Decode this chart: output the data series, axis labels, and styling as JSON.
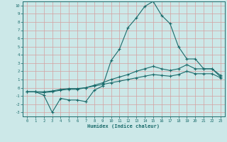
{
  "xlabel": "Humidex (Indice chaleur)",
  "bg_color": "#cce8e8",
  "grid_color": "#d4a0a0",
  "line_color": "#1a6b6b",
  "xlim": [
    -0.5,
    23.5
  ],
  "ylim": [
    -3.5,
    10.5
  ],
  "xticks": [
    0,
    1,
    2,
    3,
    4,
    5,
    6,
    7,
    8,
    9,
    10,
    11,
    12,
    13,
    14,
    15,
    16,
    17,
    18,
    19,
    20,
    21,
    22,
    23
  ],
  "yticks": [
    -3,
    -2,
    -1,
    0,
    1,
    2,
    3,
    4,
    5,
    6,
    7,
    8,
    9,
    10
  ],
  "line_max": {
    "x": [
      0,
      1,
      2,
      3,
      4,
      5,
      6,
      7,
      8,
      9,
      10,
      11,
      12,
      13,
      14,
      15,
      16,
      17,
      18,
      19,
      20,
      21,
      22,
      23
    ],
    "y": [
      -0.5,
      -0.5,
      -0.9,
      -3.0,
      -1.3,
      -1.5,
      -1.5,
      -1.7,
      -0.3,
      0.2,
      3.3,
      4.7,
      7.3,
      8.5,
      9.9,
      10.5,
      8.8,
      7.8,
      5.0,
      3.5,
      3.5,
      2.3,
      2.3,
      1.3
    ]
  },
  "line_mean": {
    "x": [
      0,
      1,
      2,
      3,
      4,
      5,
      6,
      7,
      8,
      9,
      10,
      11,
      12,
      13,
      14,
      15,
      16,
      17,
      18,
      19,
      20,
      21,
      22,
      23
    ],
    "y": [
      -0.5,
      -0.5,
      -0.6,
      -0.5,
      -0.3,
      -0.2,
      -0.2,
      0.0,
      0.3,
      0.6,
      1.0,
      1.3,
      1.6,
      2.0,
      2.3,
      2.6,
      2.3,
      2.1,
      2.3,
      2.8,
      2.3,
      2.3,
      2.3,
      1.5
    ]
  },
  "line_min": {
    "x": [
      0,
      1,
      2,
      3,
      4,
      5,
      6,
      7,
      8,
      9,
      10,
      11,
      12,
      13,
      14,
      15,
      16,
      17,
      18,
      19,
      20,
      21,
      22,
      23
    ],
    "y": [
      -0.5,
      -0.5,
      -0.5,
      -0.4,
      -0.2,
      -0.1,
      -0.1,
      0.0,
      0.2,
      0.4,
      0.6,
      0.8,
      1.0,
      1.2,
      1.4,
      1.6,
      1.5,
      1.4,
      1.6,
      2.0,
      1.7,
      1.7,
      1.7,
      1.2
    ]
  }
}
